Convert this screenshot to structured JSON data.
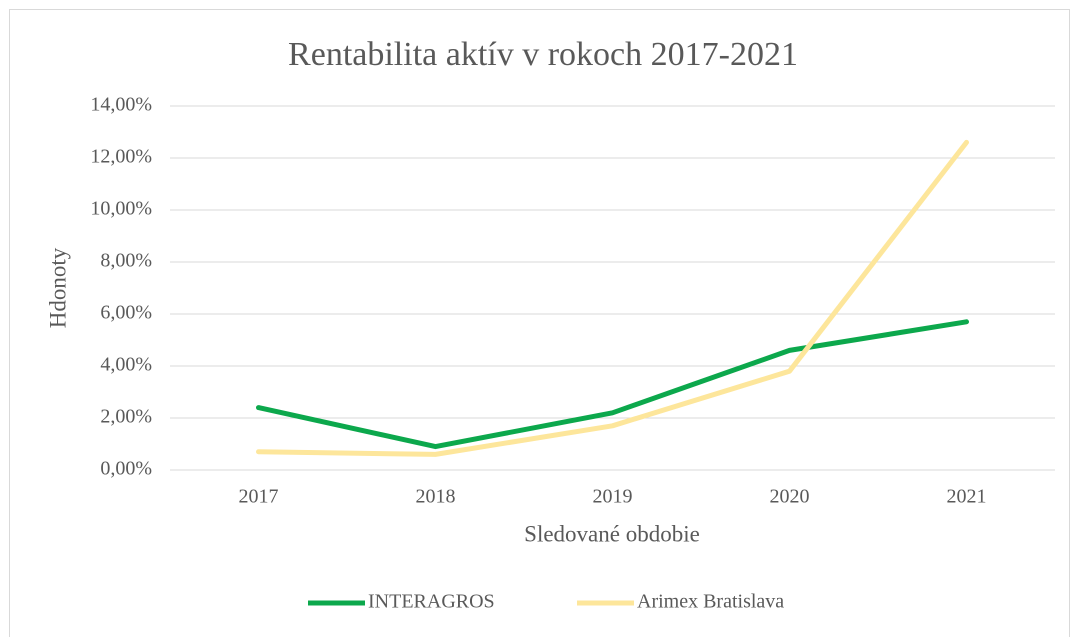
{
  "chart_data": {
    "type": "line",
    "title": "Rentabilita aktív v rokoch 2017-2021",
    "x_label": "Sledované obdobie",
    "y_label": "Hdonoty",
    "categories": [
      "2017",
      "2018",
      "2019",
      "2020",
      "2021"
    ],
    "series": [
      {
        "name": "INTERAGROS",
        "color": "#0ca84c",
        "values": [
          2.4,
          0.9,
          2.2,
          4.6,
          5.7
        ]
      },
      {
        "name": "Arimex Bratislava",
        "color": "#fde69b",
        "values": [
          0.7,
          0.6,
          1.7,
          3.8,
          12.6
        ]
      }
    ],
    "ylim": [
      0,
      14
    ],
    "yticks": [
      {
        "value": 0,
        "label": "0,00%"
      },
      {
        "value": 2,
        "label": "2,00%"
      },
      {
        "value": 4,
        "label": "4,00%"
      },
      {
        "value": 6,
        "label": "6,00%"
      },
      {
        "value": 8,
        "label": "8,00%"
      },
      {
        "value": 10,
        "label": "10,00%"
      },
      {
        "value": 12,
        "label": "12,00%"
      },
      {
        "value": 14,
        "label": "14,00%"
      }
    ],
    "grid": true,
    "legend": "bottom"
  }
}
